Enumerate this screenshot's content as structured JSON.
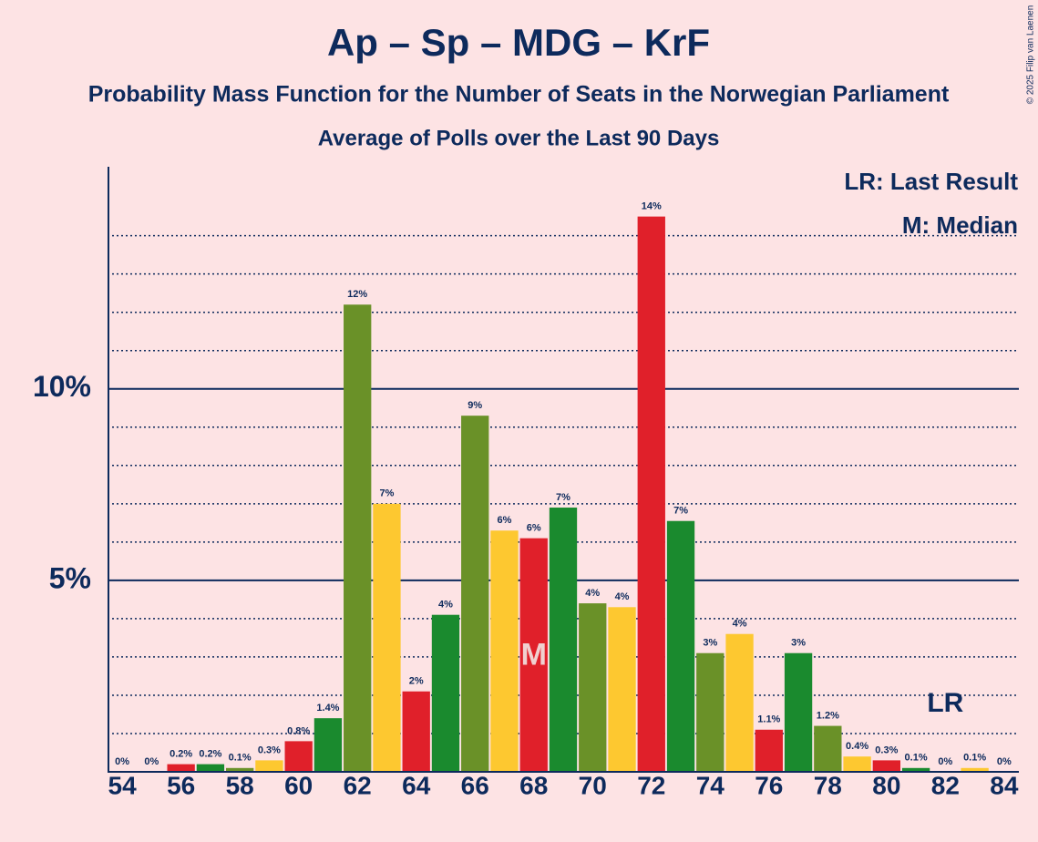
{
  "chart_data": {
    "type": "bar",
    "title": "Ap – Sp – MDG – KrF",
    "subtitle": "Probability Mass Function for the Number of Seats in the Norwegian Parliament",
    "subtitle2": "Average of Polls over the Last 90 Days",
    "copyright": "© 2025 Filip van Laenen",
    "legend": [
      "LR: Last Result",
      "M: Median"
    ],
    "x": [
      54,
      55,
      56,
      57,
      58,
      59,
      60,
      61,
      62,
      63,
      64,
      65,
      66,
      67,
      68,
      69,
      70,
      71,
      72,
      73,
      74,
      75,
      76,
      77,
      78,
      79,
      80,
      81,
      82,
      83,
      84
    ],
    "values": [
      0,
      0,
      0.2,
      0.2,
      0.1,
      0.3,
      0.8,
      1.4,
      12.2,
      7.0,
      2.1,
      4.1,
      9.3,
      6.3,
      6.1,
      6.9,
      4.4,
      4.3,
      14.5,
      6.55,
      3.1,
      3.6,
      1.1,
      3.1,
      1.2,
      0.4,
      0.3,
      0.1,
      0,
      0.1,
      0
    ],
    "value_labels": [
      "0%",
      "0%",
      "0.2%",
      "0.2%",
      "0.1%",
      "0.3%",
      "0.8%",
      "1.4%",
      "12%",
      "7%",
      "2%",
      "4%",
      "9%",
      "6%",
      "6%",
      "7%",
      "4%",
      "4%",
      "14%",
      "7%",
      "3%",
      "4%",
      "1.1%",
      "3%",
      "1.2%",
      "0.4%",
      "0.3%",
      "0.1%",
      "0%",
      "0.1%",
      "0%"
    ],
    "colors": [
      "#6a9128",
      "#fdc830",
      "#e0202a",
      "#1a8a2e",
      "#6a9128",
      "#fdc830",
      "#e0202a",
      "#1a8a2e",
      "#6a9128",
      "#fdc830",
      "#e0202a",
      "#1a8a2e",
      "#6a9128",
      "#fdc830",
      "#e0202a",
      "#1a8a2e",
      "#6a9128",
      "#fdc830",
      "#e0202a",
      "#1a8a2e",
      "#6a9128",
      "#fdc830",
      "#e0202a",
      "#1a8a2e",
      "#6a9128",
      "#fdc830",
      "#e0202a",
      "#1a8a2e",
      "#6a9128",
      "#fdc830",
      "#e0202a"
    ],
    "xlim": [
      53.5,
      84.5
    ],
    "xticks": [
      54,
      56,
      58,
      60,
      62,
      64,
      66,
      68,
      70,
      72,
      74,
      76,
      78,
      80,
      82,
      84
    ],
    "ylim": [
      0,
      15.8
    ],
    "yticks": [
      {
        "value": 5,
        "label": "5%"
      },
      {
        "value": 10,
        "label": "10%"
      }
    ],
    "minor_gridlines": [
      1,
      2,
      3,
      4,
      6,
      7,
      8,
      9,
      11,
      12,
      13,
      14
    ],
    "median": {
      "x": 68,
      "label": "M"
    },
    "last_result": {
      "x": 82,
      "label": "LR"
    }
  }
}
